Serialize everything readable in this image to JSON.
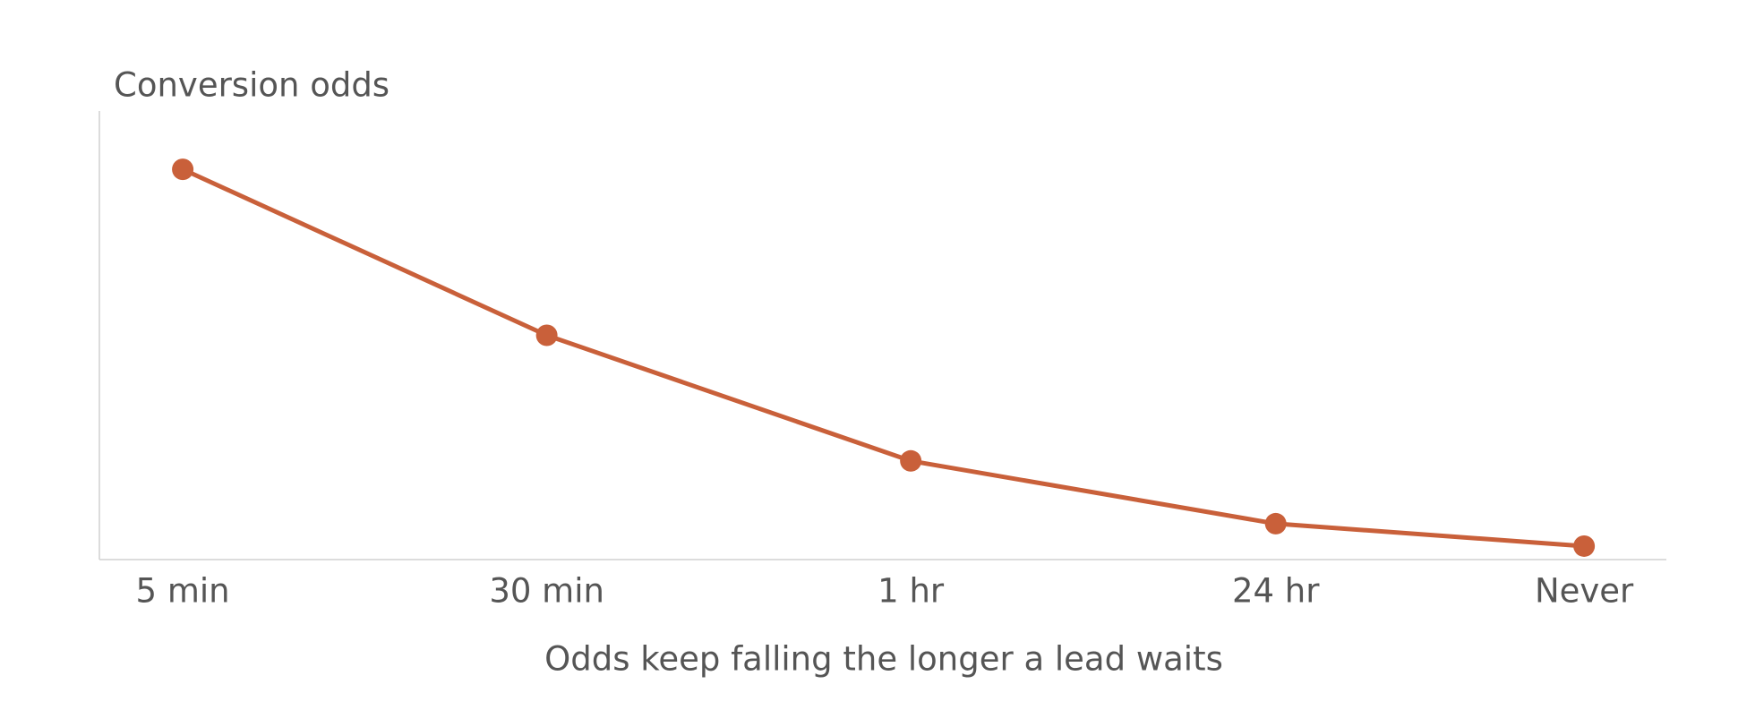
{
  "chart_data": {
    "type": "line",
    "title": "Conversion odds",
    "x_label": "Odds keep falling the longer a lead waits",
    "categories": [
      "5 min",
      "30 min",
      "1 hr",
      "24 hr",
      "Never"
    ],
    "series": [
      {
        "color": "#c9603a",
        "values": [
          87,
          50,
          22,
          8,
          3
        ]
      }
    ],
    "ylim": [
      0,
      100
    ]
  }
}
